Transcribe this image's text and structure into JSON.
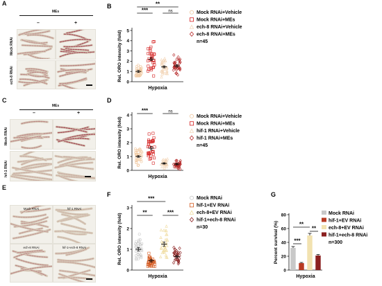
{
  "panels": {
    "A": {
      "letter": "A",
      "header": "MEs",
      "minus": "–",
      "plus": "+",
      "rows": [
        "Mock RNAi",
        "ech-8 RNAi"
      ]
    },
    "C": {
      "letter": "C",
      "header": "MEs",
      "minus": "–",
      "plus": "+",
      "rows": [
        "Mock RNAi",
        "hif-1 RNAi"
      ]
    },
    "E": {
      "letter": "E",
      "tiles": [
        "Mock RNAi",
        "hif-1 RNAi",
        "ech-8 RNAi",
        "hif-1+ech-8 RNAi"
      ]
    }
  },
  "chart_data": [
    {
      "letter": "B",
      "type": "scatter",
      "ylabel": "Rel. ORO intensity (fold)",
      "xlabel": "Hypoxia",
      "ylim": [
        0,
        5
      ],
      "yticks": [
        0,
        1,
        2,
        3,
        4,
        5
      ],
      "n_label": "n=45",
      "series": [
        {
          "name": "Mock RNAi+Vehicle",
          "mean": 1.0,
          "sem": 0.1,
          "color": "#f0c8a0",
          "marker": "circle-open"
        },
        {
          "name": "Mock RNAi+MEs",
          "mean": 2.2,
          "sem": 0.15,
          "color": "#d42020",
          "marker": "square-open"
        },
        {
          "name": "ech-8 RNAi+Vehicle",
          "mean": 1.45,
          "sem": 0.1,
          "color": "#f3d6b8",
          "marker": "triangle-open"
        },
        {
          "name": "ech-8 RNAi+MEs",
          "mean": 1.55,
          "sem": 0.12,
          "color": "#b52828",
          "marker": "diamond-open"
        }
      ],
      "significance": [
        {
          "pair": [
            0,
            1
          ],
          "label": "***"
        },
        {
          "pair": [
            0,
            3
          ],
          "label": "**"
        },
        {
          "pair": [
            2,
            3
          ],
          "label": "ns"
        }
      ]
    },
    {
      "letter": "D",
      "type": "scatter",
      "ylabel": "Rel. ORO intensity (fold)",
      "xlabel": "Hypoxia",
      "ylim": [
        0,
        4
      ],
      "yticks": [
        0,
        1,
        2,
        3,
        4
      ],
      "n_label": "n=45",
      "series": [
        {
          "name": "Mock RNAi+Vehicle",
          "mean": 1.0,
          "sem": 0.06,
          "color": "#f0c8a0",
          "marker": "circle-open"
        },
        {
          "name": "Mock RNAi+MEs",
          "mean": 1.6,
          "sem": 0.12,
          "color": "#d42020",
          "marker": "square-open"
        },
        {
          "name": "hif-1 RNAi+Vehicle",
          "mean": 0.5,
          "sem": 0.05,
          "color": "#f3d6b8",
          "marker": "triangle-open"
        },
        {
          "name": "hif-1 RNAi+MEs",
          "mean": 0.45,
          "sem": 0.06,
          "color": "#b52828",
          "marker": "diamond-open"
        }
      ],
      "significance": [
        {
          "pair": [
            0,
            1
          ],
          "label": "***"
        },
        {
          "pair": [
            2,
            3
          ],
          "label": "ns"
        }
      ]
    },
    {
      "letter": "F",
      "type": "scatter",
      "ylabel": "Rel. ORO intensity (fold)",
      "xlabel": "Hypoxia",
      "ylim": [
        0,
        3
      ],
      "yticks": [
        0,
        1,
        2,
        3
      ],
      "n_label": "n=30",
      "series": [
        {
          "name": "Mock RNAi",
          "mean": 1.0,
          "sem": 0.08,
          "color": "#c8c8c8",
          "marker": "circle-open"
        },
        {
          "name": "hif-1+EV RNAi",
          "mean": 0.45,
          "sem": 0.06,
          "color": "#d45a20",
          "marker": "square-open"
        },
        {
          "name": "ech-8+EV RNAi",
          "mean": 1.25,
          "sem": 0.1,
          "color": "#f0dca0",
          "marker": "triangle-open"
        },
        {
          "name": "hif-1+ech-8 RNAi",
          "mean": 0.65,
          "sem": 0.06,
          "color": "#8b2020",
          "marker": "diamond-open"
        }
      ],
      "significance": [
        {
          "pair": [
            0,
            1
          ],
          "label": "**"
        },
        {
          "pair": [
            0,
            2
          ],
          "label": "***"
        },
        {
          "pair": [
            2,
            3
          ],
          "label": "***"
        }
      ]
    },
    {
      "letter": "G",
      "type": "bar",
      "ylabel": "Percent survival (%)",
      "xlabel": "Hypoxia",
      "ylim": [
        0,
        80
      ],
      "yticks": [
        0,
        20,
        40,
        60,
        80
      ],
      "n_label": "n=300",
      "categories": [
        "Mock RNAi",
        "hif-1+EV RNAi",
        "ech-8+EV RNAi",
        "hif-1+ech-8 RNAi"
      ],
      "values": [
        32,
        10,
        50,
        21
      ],
      "errors": [
        2,
        1,
        3,
        1.5
      ],
      "colors": [
        "#c8c8c8",
        "#b83a22",
        "#f2e2b0",
        "#8b2020"
      ],
      "significance": [
        {
          "pair": [
            0,
            1
          ],
          "label": "***"
        },
        {
          "pair": [
            0,
            2
          ],
          "label": "**"
        },
        {
          "pair": [
            2,
            3
          ],
          "label": "**"
        }
      ]
    }
  ]
}
